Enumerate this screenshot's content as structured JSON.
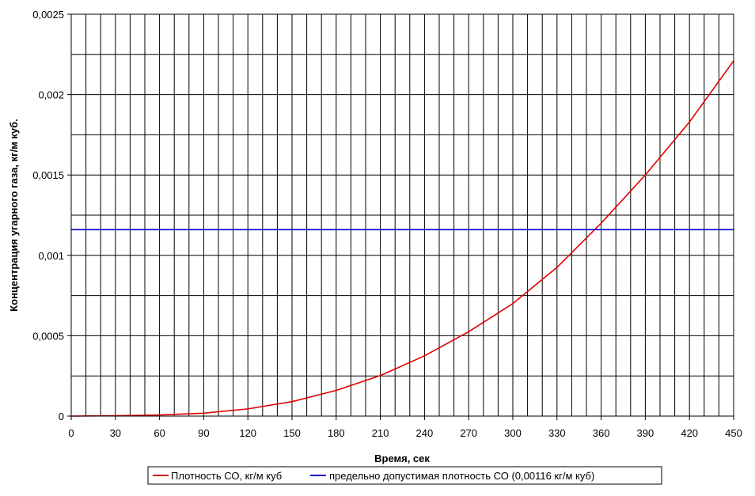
{
  "chart_data": {
    "type": "line",
    "xlabel": "Время, сек",
    "ylabel": "Концентрация угарного газа, кг/м куб.",
    "xlim": [
      0,
      450
    ],
    "ylim": [
      0,
      0.0025
    ],
    "x_ticks": [
      0,
      30,
      60,
      90,
      120,
      150,
      180,
      210,
      240,
      270,
      300,
      330,
      360,
      390,
      420,
      450
    ],
    "x_tick_labels": [
      "0",
      "30",
      "60",
      "90",
      "120",
      "150",
      "180",
      "210",
      "240",
      "270",
      "300",
      "330",
      "360",
      "390",
      "420",
      "450"
    ],
    "y_ticks": [
      0,
      0.0005,
      0.001,
      0.0015,
      0.002,
      0.0025
    ],
    "y_tick_labels": [
      "0",
      "0,0005",
      "0,001",
      "0,0015",
      "0,002",
      "0,0025"
    ],
    "grid": true,
    "legend_position": "bottom",
    "series": [
      {
        "name": "Плотность СО, кг/м куб",
        "color": "#e00000",
        "x": [
          0,
          30,
          60,
          90,
          120,
          150,
          180,
          210,
          240,
          270,
          300,
          330,
          360,
          390,
          420,
          450
        ],
        "values": [
          0,
          2e-06,
          7e-06,
          1.8e-05,
          4.5e-05,
          9e-05,
          0.00016,
          0.000252,
          0.000375,
          0.000525,
          0.0007,
          0.000925,
          0.0012,
          0.0015,
          0.00183,
          0.00221
        ]
      },
      {
        "name": "предельно допустимая плотность СО (0,00116 кг/м куб)",
        "color": "#0000cc",
        "x": [
          0,
          450
        ],
        "values": [
          0.00116,
          0.00116
        ]
      }
    ]
  }
}
